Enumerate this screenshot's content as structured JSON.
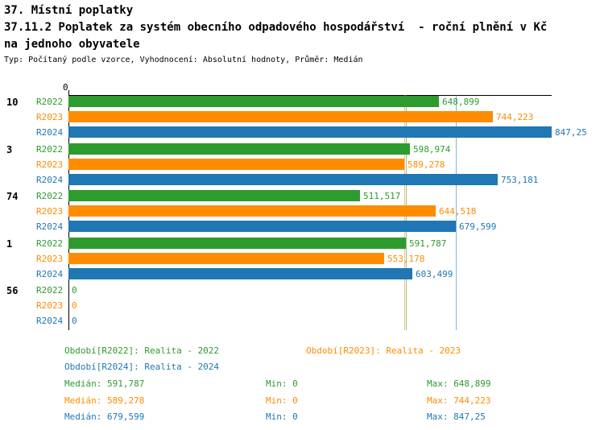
{
  "title": {
    "line1": "37. Místní poplatky",
    "line2": "37.11.2 Poplatek za systém obecního odpadového hospodářství  - roční plnění v Kč",
    "line3": "na jednoho obyvatele",
    "meta": "Typ: Počítaný podle vzorce, Vyhodnocení: Absolutní hodnoty, Průměr: Medián"
  },
  "colors": {
    "r2022_green": "#2e9b2e",
    "r2023_orange": "#ff8c00",
    "r2024_blue": "#1f77b4",
    "axis": "#000000",
    "background": "#ffffff"
  },
  "chart_data": {
    "type": "bar",
    "orientation": "horizontal",
    "title": "37.11.2 Poplatek za systém obecního odpadového hospodářství - roční plnění v Kč na jednoho obyvatele",
    "categories": [
      "10",
      "3",
      "74",
      "1",
      "56"
    ],
    "series": [
      {
        "name": "R2022",
        "color": "#2e9b2e",
        "values": [
          648.899,
          598.974,
          511.517,
          591.787,
          0
        ],
        "value_labels": [
          "648,899",
          "598,974",
          "511,517",
          "591,787",
          "0"
        ],
        "median": 591.787,
        "median_label": "591,787",
        "min": 0,
        "max_label": "648,899"
      },
      {
        "name": "R2023",
        "color": "#ff8c00",
        "values": [
          744.223,
          589.278,
          644.518,
          553.178,
          0
        ],
        "value_labels": [
          "744,223",
          "589,278",
          "644,518",
          "553,178",
          "0"
        ],
        "median": 589.278,
        "median_label": "589,278",
        "min": 0,
        "max_label": "744,223"
      },
      {
        "name": "R2024",
        "color": "#1f77b4",
        "values": [
          847.25,
          753.181,
          679.599,
          603.499,
          0
        ],
        "value_labels": [
          "847,25",
          "753,181",
          "679,599",
          "603,499",
          "0"
        ],
        "median": 679.599,
        "median_label": "679,599",
        "min": 0,
        "max_label": "847,25"
      }
    ],
    "x_axis": {
      "origin_label": "0",
      "min": 0,
      "max": 847.25
    },
    "grid": false,
    "legend_position": "bottom"
  },
  "legend": {
    "items": [
      {
        "label": "Období[R2022]: Realita - 2022",
        "color": "#2e9b2e"
      },
      {
        "label": "Období[R2023]: Realita - 2023",
        "color": "#ff8c00"
      },
      {
        "label": "Období[R2024]: Realita - 2024",
        "color": "#1f77b4"
      }
    ]
  },
  "stats": {
    "rows": [
      {
        "median": "Medián: 591,787",
        "min": "Min: 0",
        "max": "Max: 648,899",
        "color": "#2e9b2e"
      },
      {
        "median": "Medián: 589,278",
        "min": "Min: 0",
        "max": "Max: 744,223",
        "color": "#ff8c00"
      },
      {
        "median": "Medián: 679,599",
        "min": "Min: 0",
        "max": "Max: 847,25",
        "color": "#1f77b4"
      }
    ]
  }
}
